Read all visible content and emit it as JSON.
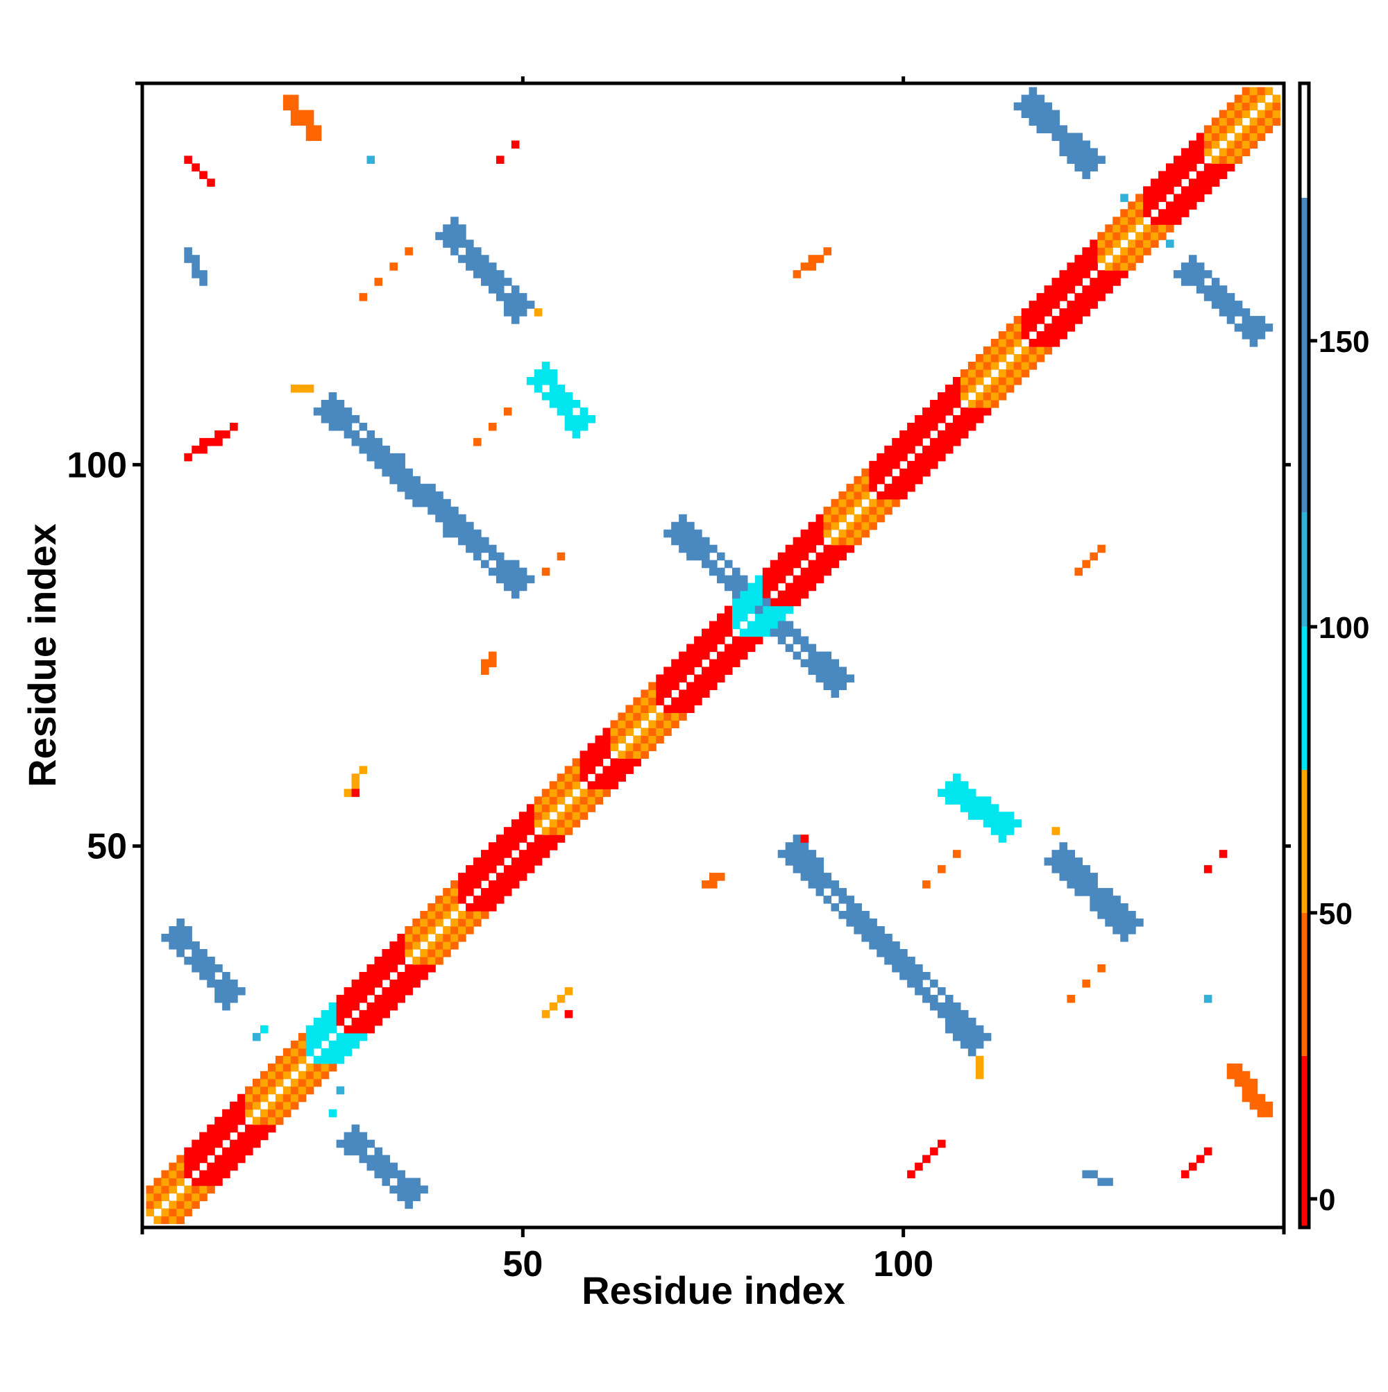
{
  "chart_data": {
    "type": "heatmap",
    "title": "",
    "xlabel": "Residue index",
    "ylabel": "Residue index",
    "xlim": [
      0,
      150
    ],
    "ylim": [
      0,
      150
    ],
    "x_ticks": [
      50,
      100
    ],
    "y_ticks": [
      50,
      100
    ],
    "colorbar": {
      "ticks": [
        0,
        50,
        100,
        150
      ],
      "range": [
        -5,
        195
      ],
      "bands": [
        {
          "from": -5,
          "to": 25,
          "color": "#ff0000"
        },
        {
          "from": 25,
          "to": 50,
          "color": "#ff6600"
        },
        {
          "from": 50,
          "to": 75,
          "color": "#ffa500"
        },
        {
          "from": 75,
          "to": 100,
          "color": "#00e5ee"
        },
        {
          "from": 100,
          "to": 120,
          "color": "#33b0d8"
        },
        {
          "from": 120,
          "to": 175,
          "color": "#4a88c0"
        },
        {
          "from": 175,
          "to": 195,
          "color": "#ffffff"
        }
      ]
    },
    "grid": false,
    "legend": "colorbar-right",
    "diagonal_band": {
      "x_range": [
        1,
        149
      ],
      "offsets": [
        1,
        2,
        3,
        4
      ],
      "segment_colors": [
        {
          "from": 1,
          "to": 6,
          "color": "#ffa500"
        },
        {
          "from": 6,
          "to": 14,
          "color": "#ff0000"
        },
        {
          "from": 14,
          "to": 22,
          "color": "#ffa500"
        },
        {
          "from": 22,
          "to": 26,
          "color": "#00e5ee"
        },
        {
          "from": 26,
          "to": 35,
          "color": "#ff0000"
        },
        {
          "from": 35,
          "to": 42,
          "color": "#ffa500"
        },
        {
          "from": 42,
          "to": 52,
          "color": "#ff0000"
        },
        {
          "from": 52,
          "to": 58,
          "color": "#ffa500"
        },
        {
          "from": 58,
          "to": 62,
          "color": "#ff0000"
        },
        {
          "from": 62,
          "to": 68,
          "color": "#ffa500"
        },
        {
          "from": 68,
          "to": 78,
          "color": "#ff0000"
        },
        {
          "from": 78,
          "to": 82,
          "color": "#00e5ee"
        },
        {
          "from": 82,
          "to": 90,
          "color": "#ff0000"
        },
        {
          "from": 90,
          "to": 96,
          "color": "#ffa500"
        },
        {
          "from": 96,
          "to": 108,
          "color": "#ff0000"
        },
        {
          "from": 108,
          "to": 116,
          "color": "#ffa500"
        },
        {
          "from": 116,
          "to": 126,
          "color": "#ff0000"
        },
        {
          "from": 126,
          "to": 132,
          "color": "#ffa500"
        },
        {
          "from": 132,
          "to": 140,
          "color": "#ff0000"
        },
        {
          "from": 140,
          "to": 149,
          "color": "#ffa500"
        }
      ]
    },
    "features": [
      {
        "kind": "strip",
        "start": [
          27,
          12
        ],
        "end": [
          36,
          4
        ],
        "width": 3,
        "color": "#4a88c0"
      },
      {
        "kind": "strip",
        "start": [
          4,
          39
        ],
        "end": [
          12,
          30
        ],
        "width": 3,
        "color": "#4a88c0"
      },
      {
        "kind": "strip",
        "start": [
          40,
          131
        ],
        "end": [
          50,
          120
        ],
        "width": 3,
        "color": "#4a88c0"
      },
      {
        "kind": "strip",
        "start": [
          24,
          108
        ],
        "end": [
          50,
          84
        ],
        "width": 3,
        "color": "#4a88c0"
      },
      {
        "kind": "strip",
        "start": [
          52,
          112
        ],
        "end": [
          58,
          105
        ],
        "width": 3,
        "color": "#00e5ee"
      },
      {
        "kind": "strip",
        "start": [
          70,
          92
        ],
        "end": [
          92,
          71
        ],
        "width": 3,
        "color": "#4a88c0"
      },
      {
        "kind": "strip",
        "start": [
          85,
          50
        ],
        "end": [
          110,
          24
        ],
        "width": 3,
        "color": "#4a88c0"
      },
      {
        "kind": "strip",
        "start": [
          106,
          58
        ],
        "end": [
          114,
          52
        ],
        "width": 3,
        "color": "#00e5ee"
      },
      {
        "kind": "strip",
        "start": [
          120,
          49
        ],
        "end": [
          130,
          39
        ],
        "width": 3,
        "color": "#4a88c0"
      },
      {
        "kind": "strip",
        "start": [
          116,
          148
        ],
        "end": [
          125,
          139
        ],
        "width": 3,
        "color": "#4a88c0"
      },
      {
        "kind": "strip",
        "start": [
          137,
          126
        ],
        "end": [
          147,
          117
        ],
        "width": 3,
        "color": "#4a88c0"
      },
      {
        "kind": "strip",
        "start": [
          19,
          148
        ],
        "end": [
          23,
          143
        ],
        "width": 2,
        "color": "#ff6600"
      },
      {
        "kind": "strip",
        "start": [
          143,
          21
        ],
        "end": [
          148,
          15
        ],
        "width": 2,
        "color": "#ff6600"
      },
      {
        "kind": "strip",
        "start": [
          6,
          140
        ],
        "end": [
          9,
          137
        ],
        "width": 1,
        "color": "#ff0000"
      },
      {
        "kind": "strip",
        "start": [
          6,
          101
        ],
        "end": [
          12,
          105
        ],
        "width": 1,
        "color": "#ff0000"
      },
      {
        "kind": "strip",
        "start": [
          101,
          7
        ],
        "end": [
          105,
          11
        ],
        "width": 1,
        "color": "#ff0000"
      },
      {
        "kind": "strip",
        "start": [
          137,
          7
        ],
        "end": [
          140,
          10
        ],
        "width": 1,
        "color": "#ff0000"
      },
      {
        "kind": "strip",
        "start": [
          6,
          128
        ],
        "end": [
          8,
          124
        ],
        "width": 1,
        "color": "#4a88c0"
      },
      {
        "kind": "strip",
        "start": [
          124,
          7
        ],
        "end": [
          127,
          6
        ],
        "width": 1,
        "color": "#4a88c0"
      },
      {
        "kind": "strip",
        "start": [
          27,
          57
        ],
        "end": [
          29,
          60
        ],
        "width": 1,
        "color": "#ffa500"
      },
      {
        "kind": "strip",
        "start": [
          53,
          28
        ],
        "end": [
          56,
          31
        ],
        "width": 1,
        "color": "#ffa500"
      },
      {
        "kind": "strip",
        "start": [
          86,
          125
        ],
        "end": [
          90,
          128
        ],
        "width": 1,
        "color": "#ff6600"
      },
      {
        "kind": "strip",
        "start": [
          123,
          86
        ],
        "end": [
          126,
          89
        ],
        "width": 1,
        "color": "#ff6600"
      },
      {
        "kind": "strip",
        "start": [
          74,
          45
        ],
        "end": [
          76,
          46
        ],
        "width": 1,
        "color": "#ff6600"
      },
      {
        "kind": "strip",
        "start": [
          45,
          73
        ],
        "end": [
          46,
          75
        ],
        "width": 1,
        "color": "#ff6600"
      },
      {
        "kind": "strip",
        "start": [
          20,
          110
        ],
        "end": [
          22,
          110
        ],
        "width": 1,
        "color": "#ffa500"
      },
      {
        "kind": "strip",
        "start": [
          110,
          20
        ],
        "end": [
          110,
          22
        ],
        "width": 1,
        "color": "#ffa500"
      },
      {
        "kind": "dots",
        "color": "#ff6600",
        "points": [
          [
            29,
            122
          ],
          [
            31,
            124
          ],
          [
            33,
            126
          ],
          [
            35,
            128
          ],
          [
            44,
            103
          ],
          [
            46,
            105
          ],
          [
            48,
            107
          ],
          [
            103,
            45
          ],
          [
            105,
            47
          ],
          [
            107,
            49
          ],
          [
            122,
            30
          ],
          [
            124,
            32
          ],
          [
            126,
            34
          ],
          [
            53,
            86
          ],
          [
            55,
            88
          ]
        ]
      },
      {
        "kind": "dots",
        "color": "#ff0000",
        "points": [
          [
            47,
            140
          ],
          [
            49,
            142
          ],
          [
            28,
            57
          ],
          [
            56,
            28
          ],
          [
            85,
            50
          ],
          [
            87,
            51
          ],
          [
            140,
            47
          ],
          [
            142,
            49
          ]
        ]
      },
      {
        "kind": "dots",
        "color": "#ffa500",
        "points": [
          [
            52,
            120
          ],
          [
            120,
            52
          ]
        ]
      },
      {
        "kind": "dots",
        "color": "#33b0d8",
        "points": [
          [
            30,
            140
          ],
          [
            140,
            30
          ],
          [
            26,
            18
          ],
          [
            15,
            25
          ],
          [
            129,
            135
          ],
          [
            135,
            129
          ]
        ]
      },
      {
        "kind": "dots",
        "color": "#00e5ee",
        "points": [
          [
            25,
            15
          ],
          [
            16,
            26
          ]
        ]
      }
    ]
  }
}
